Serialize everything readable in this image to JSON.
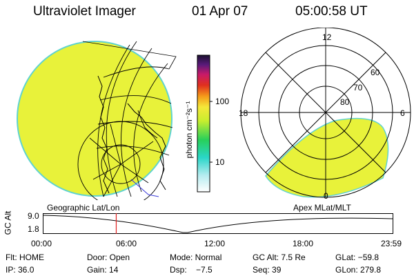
{
  "header": {
    "instrument": "Ultraviolet Imager",
    "date": "01 Apr 07",
    "time": "05:00:58 UT"
  },
  "colors": {
    "fill": "#e8f23a",
    "fill_edge": "#5fd3d0",
    "line": "#000000",
    "marker": "#e02020",
    "trace_blue": "#3b3bd9"
  },
  "colorbar": {
    "unit_label": "photon cm⁻²s⁻¹",
    "tick_100": "100",
    "tick_10": "10",
    "scale": "log"
  },
  "polar": {
    "mlt_labels": {
      "top": "12",
      "left": "18",
      "right": "6",
      "bottom": "0"
    },
    "lat_labels": [
      "60",
      "70",
      "80"
    ]
  },
  "panels": {
    "left_label": "Geographic Lat/Lon",
    "right_label": "Apex MLat/MLT"
  },
  "timeline": {
    "ylabel": "GC Alt",
    "y_top": "9.0",
    "y_bottom": "1.8",
    "ticks": [
      "00:00",
      "06:00",
      "12:00",
      "18:00",
      "23:59"
    ],
    "current_fraction": 0.209
  },
  "info": {
    "flt": "Flt: HOME",
    "door": "Door: Open",
    "mode": "Mode: Normal",
    "gcalt": "GC Alt: 7.5 Re",
    "glat": "GLat: −59.8",
    "ip": "IP: 36.0",
    "gain": "Gain: 14",
    "dsp": "Dsp:    −7.5",
    "seq": "Seq: 39",
    "glon": "GLon: 279.8"
  }
}
